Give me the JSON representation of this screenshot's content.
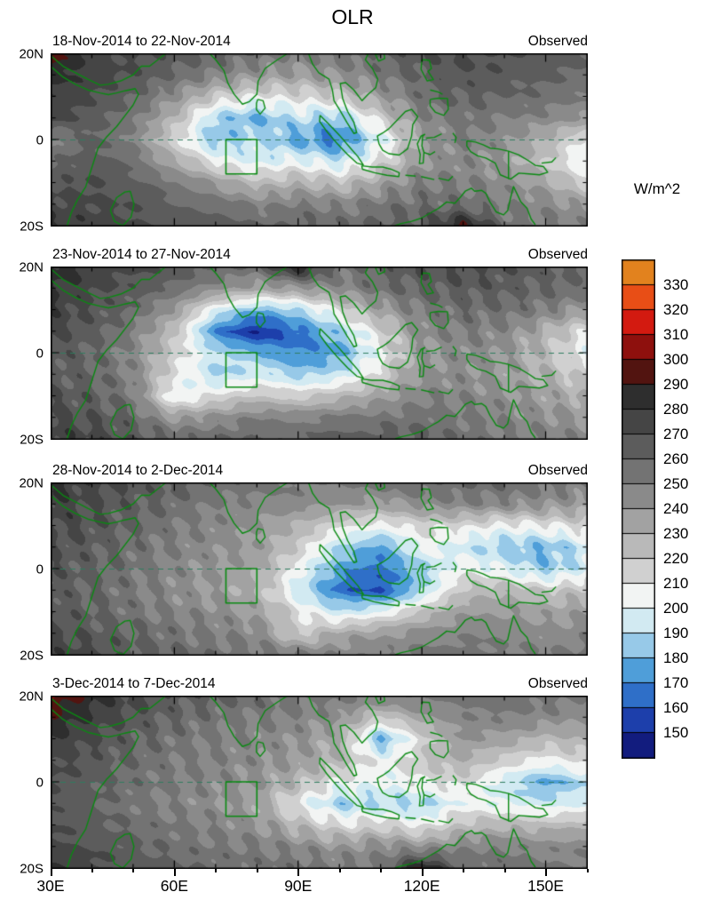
{
  "title": "OLR",
  "panels": [
    {
      "date_range": "18-Nov-2014 to 22-Nov-2014",
      "source": "Observed"
    },
    {
      "date_range": "23-Nov-2014 to 27-Nov-2014",
      "source": "Observed"
    },
    {
      "date_range": "28-Nov-2014 to 2-Dec-2014",
      "source": "Observed"
    },
    {
      "date_range": "3-Dec-2014 to 7-Dec-2014",
      "source": "Observed"
    }
  ],
  "axes": {
    "x_ticks": [
      "30E",
      "60E",
      "90E",
      "120E",
      "150E"
    ],
    "x_tick_lons": [
      30,
      60,
      90,
      120,
      150
    ],
    "y_ticks": [
      "20N",
      "0",
      "20S"
    ],
    "y_tick_lats": [
      20,
      0,
      -20
    ],
    "lon_range": [
      30,
      160
    ],
    "lat_range": [
      -20,
      20
    ]
  },
  "region_box": {
    "lon_min": 72.5,
    "lon_max": 80,
    "lat_min": -8,
    "lat_max": 0
  },
  "colorbar": {
    "label": "W/m^2",
    "tick_values": [
      330,
      320,
      310,
      300,
      290,
      280,
      270,
      260,
      250,
      240,
      230,
      220,
      210,
      200,
      190,
      180,
      170,
      160,
      150
    ],
    "colors_low_to_high": [
      "#121c7e",
      "#1d3fab",
      "#2f6fc8",
      "#4f9ed9",
      "#97c9e8",
      "#d2eaf2",
      "#f2f4f3",
      "#d0d0d0",
      "#b9b9b9",
      "#a2a2a2",
      "#8a8a8a",
      "#737373",
      "#5c5c5c",
      "#454545",
      "#2e2e2e",
      "#521410",
      "#8e100d",
      "#d31a10",
      "#e84e16",
      "#e2821e"
    ]
  },
  "chart_data": {
    "type": "heatmap",
    "title": "OLR",
    "units": "W/m^2",
    "levels": [
      150,
      160,
      170,
      180,
      190,
      200,
      210,
      220,
      230,
      240,
      250,
      260,
      270,
      280,
      290,
      300,
      310,
      320,
      330
    ],
    "grid_lons": [
      30,
      40,
      50,
      60,
      70,
      80,
      90,
      100,
      110,
      120,
      130,
      140,
      150,
      160
    ],
    "grid_lats": [
      20,
      15,
      10,
      5,
      0,
      -5,
      -10,
      -15,
      -20
    ],
    "panels": [
      {
        "label": "18-Nov-2014 to 22-Nov-2014",
        "source": "Observed",
        "values": [
          [
            296,
            278,
            270,
            266,
            262,
            256,
            250,
            254,
            262,
            268,
            272,
            270,
            266,
            262
          ],
          [
            284,
            276,
            268,
            258,
            248,
            240,
            236,
            242,
            252,
            262,
            268,
            266,
            262,
            258
          ],
          [
            278,
            270,
            260,
            242,
            218,
            208,
            212,
            218,
            238,
            256,
            262,
            260,
            256,
            250
          ],
          [
            274,
            266,
            252,
            226,
            186,
            178,
            192,
            182,
            218,
            246,
            254,
            250,
            246,
            238
          ],
          [
            246,
            262,
            248,
            214,
            182,
            192,
            176,
            166,
            198,
            236,
            250,
            244,
            228,
            206
          ],
          [
            258,
            266,
            256,
            232,
            206,
            196,
            202,
            192,
            212,
            240,
            246,
            238,
            220,
            196
          ],
          [
            268,
            270,
            264,
            252,
            238,
            224,
            230,
            222,
            236,
            250,
            250,
            244,
            234,
            214
          ],
          [
            274,
            272,
            268,
            262,
            256,
            248,
            252,
            248,
            254,
            258,
            256,
            250,
            246,
            238
          ],
          [
            280,
            276,
            272,
            268,
            264,
            260,
            262,
            258,
            262,
            266,
            292,
            256,
            252,
            248
          ]
        ]
      },
      {
        "label": "23-Nov-2014 to 27-Nov-2014",
        "source": "Observed",
        "values": [
          [
            286,
            278,
            272,
            268,
            262,
            258,
            291,
            256,
            262,
            268,
            270,
            268,
            264,
            260
          ],
          [
            282,
            274,
            266,
            256,
            244,
            234,
            238,
            246,
            256,
            262,
            266,
            264,
            260,
            256
          ],
          [
            278,
            268,
            258,
            238,
            198,
            178,
            188,
            212,
            236,
            252,
            258,
            256,
            250,
            236
          ],
          [
            272,
            264,
            250,
            222,
            168,
            148,
            166,
            186,
            216,
            244,
            250,
            246,
            228,
            210
          ],
          [
            268,
            260,
            246,
            216,
            192,
            182,
            168,
            176,
            206,
            238,
            246,
            240,
            224,
            202
          ],
          [
            264,
            262,
            248,
            210,
            188,
            196,
            186,
            192,
            216,
            242,
            244,
            238,
            228,
            216
          ],
          [
            268,
            264,
            252,
            198,
            212,
            222,
            216,
            226,
            236,
            248,
            248,
            242,
            236,
            230
          ],
          [
            272,
            268,
            260,
            238,
            244,
            250,
            248,
            252,
            254,
            256,
            252,
            248,
            244,
            240
          ],
          [
            278,
            274,
            268,
            260,
            258,
            262,
            260,
            264,
            266,
            262,
            256,
            252,
            248,
            246
          ]
        ]
      },
      {
        "label": "28-Nov-2014 to 2-Dec-2014",
        "source": "Observed",
        "values": [
          [
            282,
            274,
            268,
            264,
            258,
            254,
            252,
            250,
            254,
            258,
            260,
            258,
            254,
            250
          ],
          [
            278,
            270,
            264,
            256,
            250,
            246,
            244,
            240,
            236,
            244,
            248,
            246,
            242,
            238
          ],
          [
            274,
            268,
            260,
            252,
            246,
            240,
            228,
            212,
            204,
            214,
            212,
            204,
            208,
            214
          ],
          [
            270,
            264,
            256,
            248,
            244,
            238,
            218,
            188,
            174,
            204,
            194,
            184,
            180,
            194
          ],
          [
            268,
            262,
            254,
            246,
            240,
            232,
            204,
            176,
            164,
            186,
            208,
            198,
            184,
            198
          ],
          [
            266,
            260,
            252,
            244,
            238,
            228,
            194,
            164,
            158,
            188,
            222,
            228,
            218,
            224
          ],
          [
            268,
            262,
            254,
            248,
            244,
            236,
            212,
            192,
            202,
            222,
            238,
            240,
            236,
            238
          ],
          [
            272,
            266,
            260,
            254,
            250,
            246,
            216,
            234,
            238,
            244,
            248,
            246,
            244,
            246
          ],
          [
            278,
            272,
            266,
            260,
            256,
            254,
            252,
            248,
            250,
            254,
            256,
            252,
            250,
            252
          ]
        ]
      },
      {
        "label": "3-Dec-2014 to 7-Dec-2014",
        "source": "Observed",
        "values": [
          [
            302,
            284,
            272,
            266,
            262,
            258,
            254,
            252,
            250,
            252,
            256,
            258,
            254,
            250
          ],
          [
            290,
            278,
            268,
            260,
            254,
            250,
            248,
            242,
            218,
            236,
            248,
            250,
            246,
            242
          ],
          [
            280,
            272,
            262,
            254,
            250,
            246,
            242,
            230,
            176,
            216,
            240,
            236,
            226,
            230
          ],
          [
            274,
            266,
            258,
            252,
            248,
            244,
            238,
            226,
            204,
            220,
            230,
            216,
            206,
            214
          ],
          [
            270,
            264,
            256,
            250,
            246,
            240,
            226,
            206,
            200,
            210,
            214,
            194,
            176,
            190
          ],
          [
            268,
            262,
            252,
            248,
            242,
            234,
            206,
            186,
            190,
            186,
            204,
            198,
            194,
            198
          ],
          [
            270,
            264,
            258,
            252,
            248,
            242,
            226,
            212,
            216,
            206,
            224,
            228,
            224,
            228
          ],
          [
            274,
            268,
            262,
            256,
            252,
            250,
            246,
            240,
            246,
            242,
            248,
            250,
            246,
            248
          ],
          [
            280,
            274,
            268,
            262,
            258,
            256,
            254,
            252,
            254,
            294,
            256,
            258,
            252,
            250
          ]
        ]
      }
    ]
  }
}
